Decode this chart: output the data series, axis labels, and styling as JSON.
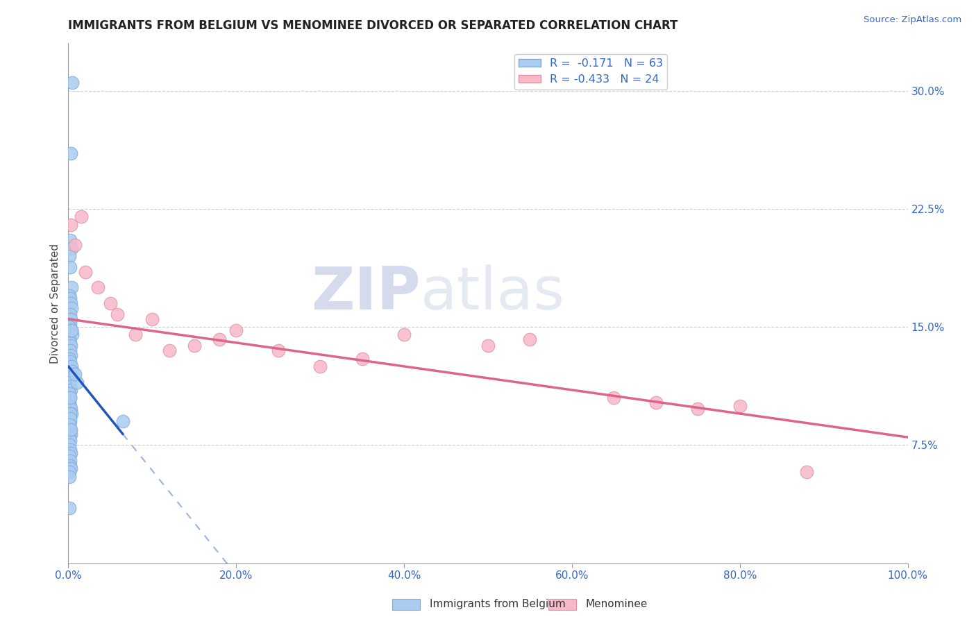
{
  "title": "IMMIGRANTS FROM BELGIUM VS MENOMINEE DIVORCED OR SEPARATED CORRELATION CHART",
  "source_text": "Source: ZipAtlas.com",
  "ylabel": "Divorced or Separated",
  "xlim": [
    0.0,
    100.0
  ],
  "ylim": [
    0.0,
    33.0
  ],
  "yticks": [
    7.5,
    15.0,
    22.5,
    30.0
  ],
  "xticks": [
    0.0,
    20.0,
    40.0,
    60.0,
    80.0,
    100.0
  ],
  "series1_label": "Immigrants from Belgium",
  "series1_R": "-0.171",
  "series1_N": "63",
  "series1_color": "#aaccf0",
  "series1_edge": "#80aadd",
  "series2_label": "Menominee",
  "series2_R": "-0.433",
  "series2_N": "24",
  "series2_color": "#f8b8c8",
  "series2_edge": "#e090a8",
  "trend1_color": "#2255bb",
  "trend2_color": "#dd6688",
  "blue_scatter_x": [
    0.5,
    0.3,
    0.2,
    0.4,
    0.15,
    0.25,
    0.35,
    0.1,
    0.2,
    0.3,
    0.4,
    0.2,
    0.3,
    0.25,
    0.15,
    0.35,
    0.45,
    0.1,
    0.2,
    0.3,
    0.2,
    0.3,
    0.15,
    0.25,
    0.35,
    0.45,
    0.2,
    0.3,
    0.15,
    0.4,
    0.2,
    0.3,
    0.15,
    0.25,
    0.1,
    0.2,
    0.3,
    0.4,
    0.15,
    0.25,
    0.1,
    0.2,
    0.3,
    0.15,
    0.25,
    0.1,
    0.2,
    0.3,
    1.0,
    0.8,
    0.15,
    0.2,
    0.25,
    0.3,
    0.15,
    0.1,
    0.2,
    0.25,
    0.15,
    0.3,
    0.1,
    0.2,
    6.5
  ],
  "blue_scatter_y": [
    30.5,
    26.0,
    20.5,
    20.0,
    19.5,
    18.8,
    17.5,
    17.0,
    16.8,
    16.5,
    16.2,
    15.8,
    15.5,
    15.2,
    15.0,
    14.8,
    14.5,
    14.2,
    14.0,
    13.8,
    13.5,
    13.2,
    13.0,
    12.8,
    12.5,
    12.2,
    12.0,
    11.8,
    11.5,
    14.8,
    11.2,
    11.0,
    10.8,
    10.5,
    10.2,
    10.0,
    9.8,
    9.5,
    9.2,
    9.0,
    8.8,
    8.5,
    8.2,
    8.0,
    7.8,
    7.5,
    7.2,
    7.0,
    11.5,
    12.0,
    6.8,
    6.5,
    6.2,
    6.0,
    5.8,
    5.5,
    9.5,
    9.2,
    8.8,
    8.5,
    3.5,
    10.5,
    9.0
  ],
  "pink_scatter_x": [
    0.3,
    0.8,
    1.5,
    2.0,
    3.5,
    5.0,
    5.8,
    8.0,
    10.0,
    12.0,
    15.0,
    18.0,
    20.0,
    25.0,
    30.0,
    35.0,
    40.0,
    50.0,
    55.0,
    65.0,
    70.0,
    75.0,
    80.0,
    88.0
  ],
  "pink_scatter_y": [
    21.5,
    20.2,
    22.0,
    18.5,
    17.5,
    16.5,
    15.8,
    14.5,
    15.5,
    13.5,
    13.8,
    14.2,
    14.8,
    13.5,
    12.5,
    13.0,
    14.5,
    13.8,
    14.2,
    10.5,
    10.2,
    9.8,
    10.0,
    5.8
  ],
  "trend1_x_start": 0.0,
  "trend1_x_solid_end": 6.5,
  "trend1_x_dash_end": 20.0,
  "trend1_y_start": 12.5,
  "trend1_y_solid_end": 8.2,
  "trend2_x_start": 0.0,
  "trend2_x_end": 100.0,
  "trend2_y_start": 15.5,
  "trend2_y_end": 8.0
}
